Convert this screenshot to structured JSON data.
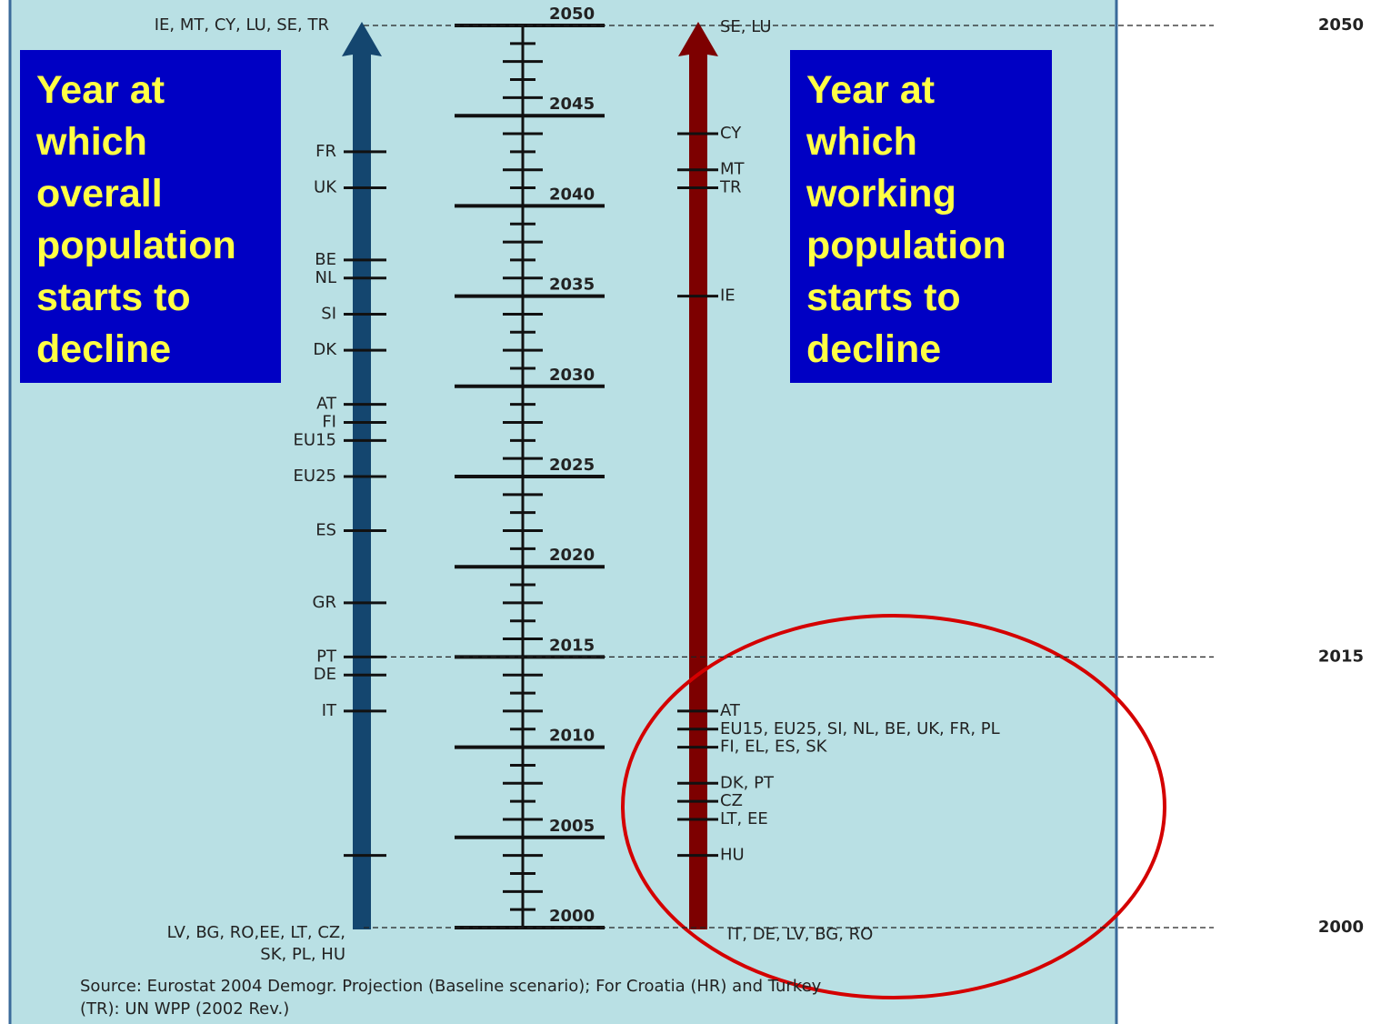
{
  "axis": {
    "lim": [
      2000,
      2050
    ],
    "labeled_years": [
      2000,
      2005,
      2010,
      2015,
      2020,
      2025,
      2030,
      2035,
      2040,
      2045,
      2050
    ]
  },
  "highlights": [
    2050,
    2015,
    2000
  ],
  "left_box": "Year at which overall population starts to decline",
  "right_box": "Year at which working population starts to decline",
  "left_top_label": "IE, MT, CY, LU, SE, TR",
  "left_bottom_label": [
    "LV, BG, RO,EE, LT, CZ,",
    "SK, PL, HU"
  ],
  "right_top_label": "SE, LU",
  "right_bottom_label": "IT, DE, LV, BG, RO",
  "left_markers": [
    {
      "label": "FR",
      "year": 2043
    },
    {
      "label": "UK",
      "year": 2041
    },
    {
      "label": "BE",
      "year": 2037
    },
    {
      "label": "NL",
      "year": 2036
    },
    {
      "label": "SI",
      "year": 2034
    },
    {
      "label": "DK",
      "year": 2032
    },
    {
      "label": "AT",
      "year": 2029
    },
    {
      "label": "FI",
      "year": 2028
    },
    {
      "label": "EU15",
      "year": 2027
    },
    {
      "label": "EU25",
      "year": 2025
    },
    {
      "label": "ES",
      "year": 2022
    },
    {
      "label": "GR",
      "year": 2018
    },
    {
      "label": "PT",
      "year": 2015
    },
    {
      "label": "DE",
      "year": 2014
    },
    {
      "label": "IT",
      "year": 2012
    },
    {
      "label": null,
      "year": 2004
    }
  ],
  "right_markers": [
    {
      "label": "CY",
      "year": 2044
    },
    {
      "label": "MT",
      "year": 2042
    },
    {
      "label": "TR",
      "year": 2041
    },
    {
      "label": "IE",
      "year": 2035
    },
    {
      "label": "AT",
      "year": 2012
    },
    {
      "label": "EU15, EU25, SI, NL, BE, UK, FR, PL",
      "year": 2011
    },
    {
      "label": "FI, EL, ES, SK",
      "year": 2010
    },
    {
      "label": "DK, PT",
      "year": 2008
    },
    {
      "label": "CZ",
      "year": 2007
    },
    {
      "label": "LT, EE",
      "year": 2006
    },
    {
      "label": "HU",
      "year": 2004
    }
  ],
  "source": [
    "Source: Eurostat 2004 Demogr. Projection (Baseline scenario); For Croatia (HR) and Turkey",
    "(TR): UN WPP (2002 Rev.)"
  ]
}
